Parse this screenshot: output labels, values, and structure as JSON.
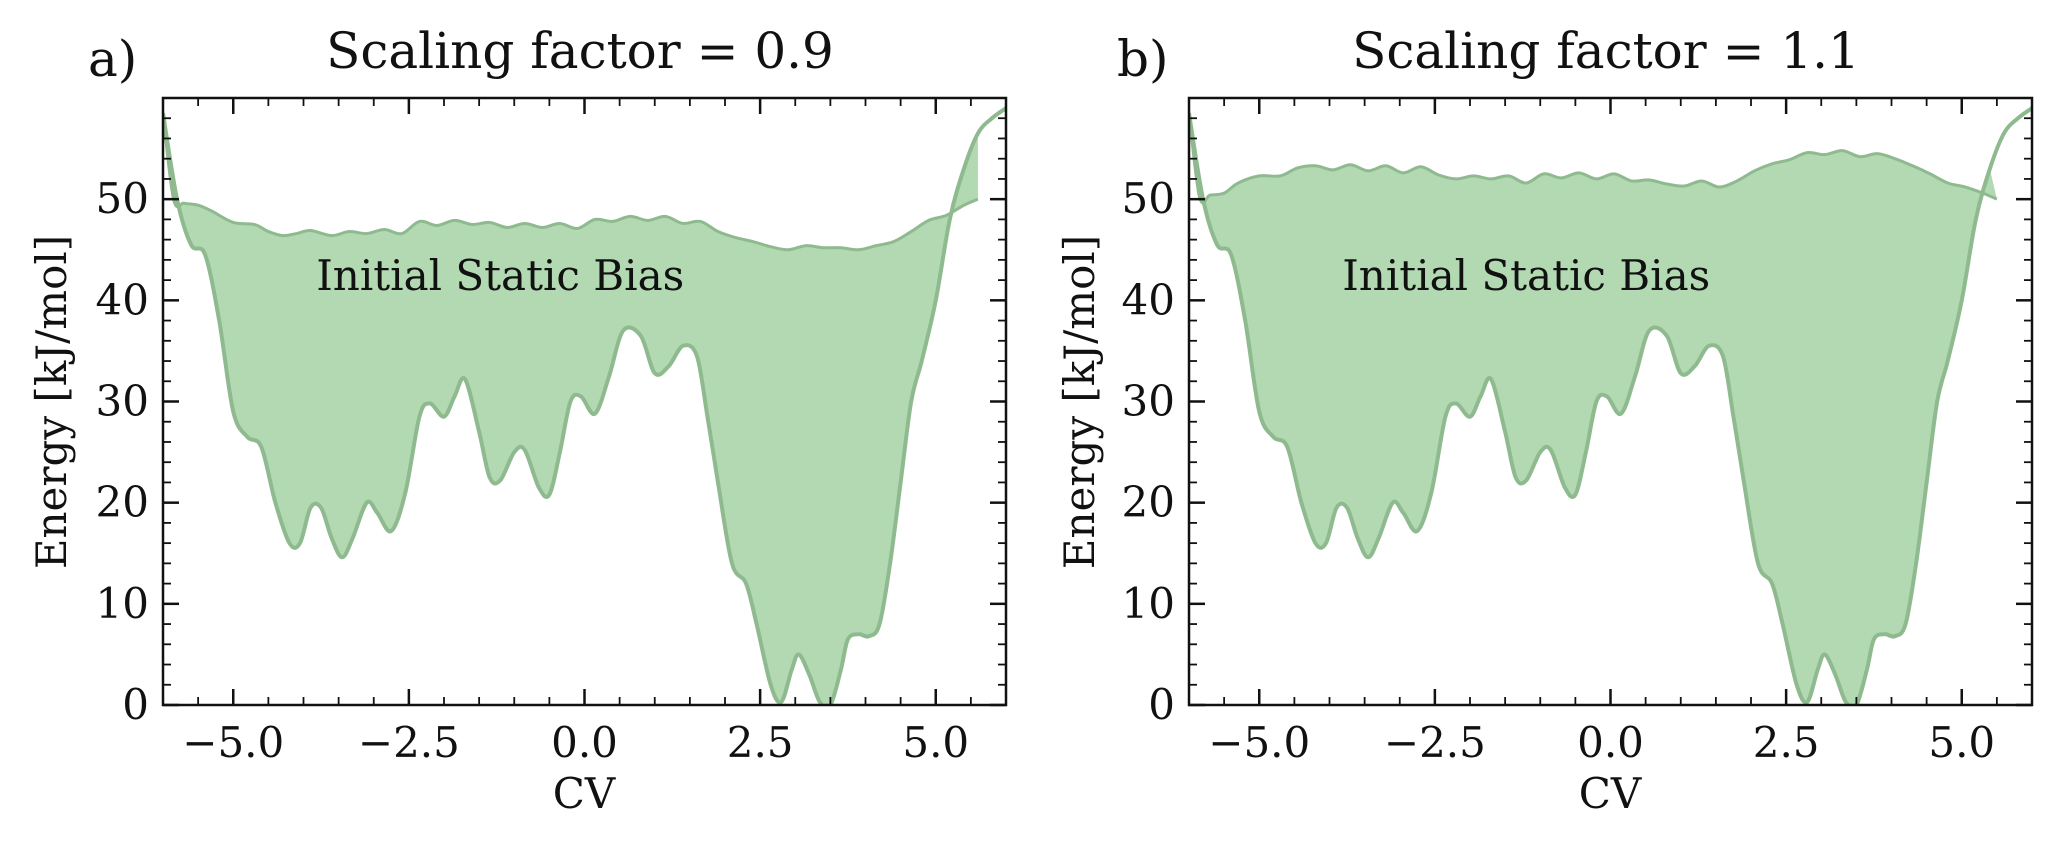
{
  "panels": [
    {
      "label": "a)",
      "title": "Scaling factor = 0.9",
      "annotation": "Initial Static Bias"
    },
    {
      "label": "b)",
      "title": "Scaling factor = 1.1",
      "annotation": "Initial Static Bias"
    }
  ],
  "colors": {
    "fill": "#b2d9b2",
    "line": "#8fba8f",
    "annotation": "#138a13",
    "axis": "#111111"
  },
  "chart_data": [
    {
      "type": "area",
      "title": "Scaling factor = 0.9",
      "xlabel": "CV",
      "ylabel": "Energy [kJ/mol]",
      "xlim": [
        -6,
        6
      ],
      "ylim": [
        0,
        60
      ],
      "xticks": [
        -5.0,
        -2.5,
        0.0,
        2.5,
        5.0
      ],
      "xtick_labels": [
        "−5.0",
        "−2.5",
        "0.0",
        "2.5",
        "5.0"
      ],
      "yticks": [
        0,
        10,
        20,
        30,
        40,
        50
      ],
      "ytick_labels": [
        "0",
        "10",
        "20",
        "30",
        "40",
        "50"
      ],
      "grid": false,
      "lower_curve": {
        "x": [
          -6.0,
          -5.8,
          -5.6,
          -5.4,
          -5.2,
          -5.0,
          -4.8,
          -4.6,
          -4.4,
          -4.2,
          -4.05,
          -3.9,
          -3.75,
          -3.6,
          -3.45,
          -3.3,
          -3.1,
          -2.95,
          -2.75,
          -2.55,
          -2.35,
          -2.2,
          -2.0,
          -1.85,
          -1.7,
          -1.5,
          -1.35,
          -1.2,
          -1.0,
          -0.85,
          -0.65,
          -0.5,
          -0.35,
          -0.2,
          -0.05,
          0.15,
          0.35,
          0.55,
          0.8,
          1.0,
          1.2,
          1.4,
          1.6,
          1.75,
          1.9,
          2.1,
          2.3,
          2.45,
          2.65,
          2.8,
          2.95,
          3.05,
          3.2,
          3.35,
          3.5,
          3.65,
          3.75,
          3.9,
          4.05,
          4.2,
          4.35,
          4.5,
          4.65,
          4.8,
          5.0,
          5.2,
          5.4,
          5.6,
          5.8,
          6.0
        ],
        "y": [
          58.5,
          50.0,
          45.5,
          44.5,
          38.0,
          29.0,
          26.5,
          25.5,
          20.0,
          16.0,
          16.0,
          19.5,
          19.5,
          16.5,
          14.6,
          16.5,
          20.0,
          19.0,
          17.2,
          21.0,
          28.5,
          29.8,
          28.5,
          30.5,
          32.2,
          27.0,
          22.5,
          22.2,
          25.0,
          25.2,
          21.5,
          20.8,
          25.0,
          30.0,
          30.5,
          28.8,
          32.5,
          37.0,
          36.5,
          32.8,
          33.5,
          35.5,
          34.5,
          28.5,
          22.0,
          14.0,
          12.0,
          8.0,
          2.0,
          0.3,
          3.5,
          5.0,
          3.0,
          0.3,
          0.0,
          3.5,
          6.5,
          7.0,
          6.8,
          8.0,
          14.0,
          22.0,
          30.0,
          34.0,
          40.0,
          48.0,
          53.0,
          56.5,
          58.0,
          59.0
        ]
      },
      "upper_curve": {
        "x": [
          -6.0,
          -5.85,
          -5.7,
          -5.5,
          -5.3,
          -5.0,
          -4.7,
          -4.5,
          -4.3,
          -4.1,
          -3.9,
          -3.6,
          -3.35,
          -3.1,
          -2.85,
          -2.6,
          -2.35,
          -2.1,
          -1.85,
          -1.6,
          -1.35,
          -1.1,
          -0.85,
          -0.6,
          -0.35,
          -0.1,
          0.15,
          0.4,
          0.65,
          0.9,
          1.15,
          1.4,
          1.65,
          1.9,
          2.15,
          2.4,
          2.65,
          2.9,
          3.15,
          3.4,
          3.65,
          3.9,
          4.15,
          4.4,
          4.65,
          4.9,
          5.15,
          5.4,
          5.6
        ],
        "y": [
          58.5,
          50.0,
          49.6,
          49.4,
          48.8,
          47.7,
          47.5,
          46.8,
          46.4,
          46.6,
          46.9,
          46.4,
          46.8,
          46.6,
          47.0,
          46.6,
          47.8,
          47.4,
          47.9,
          47.5,
          47.7,
          47.2,
          47.6,
          47.2,
          47.6,
          47.1,
          48.0,
          47.8,
          48.3,
          47.9,
          48.3,
          47.6,
          47.8,
          46.8,
          46.2,
          45.8,
          45.3,
          45.0,
          45.4,
          45.2,
          45.2,
          45.0,
          45.4,
          45.8,
          46.8,
          47.9,
          48.4,
          49.4,
          50.0
        ]
      },
      "annotation": {
        "text": "Initial Static Bias",
        "x": -1.2,
        "y": 41
      }
    },
    {
      "type": "area",
      "title": "Scaling factor = 1.1",
      "xlabel": "CV",
      "ylabel": "Energy [kJ/mol]",
      "xlim": [
        -6,
        6
      ],
      "ylim": [
        0,
        60
      ],
      "xticks": [
        -5.0,
        -2.5,
        0.0,
        2.5,
        5.0
      ],
      "xtick_labels": [
        "−5.0",
        "−2.5",
        "0.0",
        "2.5",
        "5.0"
      ],
      "yticks": [
        0,
        10,
        20,
        30,
        40,
        50
      ],
      "ytick_labels": [
        "0",
        "10",
        "20",
        "30",
        "40",
        "50"
      ],
      "grid": false,
      "lower_curve": {
        "x": [
          -6.0,
          -5.8,
          -5.6,
          -5.4,
          -5.2,
          -5.0,
          -4.8,
          -4.6,
          -4.4,
          -4.2,
          -4.05,
          -3.9,
          -3.75,
          -3.6,
          -3.45,
          -3.3,
          -3.1,
          -2.95,
          -2.75,
          -2.55,
          -2.35,
          -2.2,
          -2.0,
          -1.85,
          -1.7,
          -1.5,
          -1.35,
          -1.2,
          -1.0,
          -0.85,
          -0.65,
          -0.5,
          -0.35,
          -0.2,
          -0.05,
          0.15,
          0.35,
          0.55,
          0.8,
          1.0,
          1.2,
          1.4,
          1.6,
          1.75,
          1.9,
          2.1,
          2.3,
          2.45,
          2.65,
          2.8,
          2.95,
          3.05,
          3.2,
          3.35,
          3.5,
          3.65,
          3.75,
          3.9,
          4.05,
          4.2,
          4.35,
          4.5,
          4.65,
          4.8,
          5.0,
          5.2,
          5.4,
          5.6,
          5.8,
          6.0
        ],
        "y": [
          58.5,
          50.0,
          45.5,
          44.5,
          38.0,
          29.0,
          26.5,
          25.5,
          20.0,
          16.0,
          16.0,
          19.5,
          19.5,
          16.5,
          14.6,
          16.5,
          20.0,
          19.0,
          17.2,
          21.0,
          28.5,
          29.8,
          28.5,
          30.5,
          32.2,
          27.0,
          22.5,
          22.2,
          25.0,
          25.2,
          21.5,
          20.8,
          25.0,
          30.0,
          30.5,
          28.8,
          32.5,
          37.0,
          36.5,
          32.8,
          33.5,
          35.5,
          34.5,
          28.5,
          22.0,
          14.0,
          12.0,
          8.0,
          2.0,
          0.3,
          3.5,
          5.0,
          3.0,
          0.3,
          0.0,
          3.5,
          6.5,
          7.0,
          6.8,
          8.0,
          14.0,
          22.0,
          30.0,
          34.0,
          40.0,
          48.0,
          53.0,
          56.5,
          58.0,
          59.0
        ]
      },
      "upper_curve": {
        "x": [
          -6.0,
          -5.85,
          -5.7,
          -5.5,
          -5.3,
          -5.0,
          -4.7,
          -4.45,
          -4.2,
          -3.95,
          -3.7,
          -3.45,
          -3.2,
          -2.95,
          -2.7,
          -2.45,
          -2.2,
          -1.95,
          -1.7,
          -1.45,
          -1.2,
          -0.95,
          -0.7,
          -0.45,
          -0.2,
          0.05,
          0.3,
          0.55,
          0.8,
          1.05,
          1.3,
          1.55,
          1.8,
          2.05,
          2.3,
          2.55,
          2.8,
          3.05,
          3.3,
          3.55,
          3.8,
          4.05,
          4.3,
          4.55,
          4.8,
          5.05,
          5.3,
          5.5
        ],
        "y": [
          58.5,
          50.2,
          50.4,
          50.6,
          51.6,
          52.3,
          52.3,
          53.1,
          53.3,
          52.9,
          53.4,
          52.8,
          53.3,
          52.6,
          53.2,
          52.4,
          52.0,
          52.3,
          52.0,
          52.3,
          51.6,
          52.5,
          52.1,
          52.6,
          52.0,
          52.5,
          51.8,
          51.9,
          51.5,
          51.3,
          51.8,
          51.2,
          51.8,
          52.8,
          53.5,
          53.9,
          54.6,
          54.4,
          54.8,
          54.2,
          54.5,
          54.0,
          53.3,
          52.5,
          51.6,
          51.2,
          50.6,
          50.0
        ]
      },
      "annotation": {
        "text": "Initial Static Bias",
        "x": -1.2,
        "y": 41
      }
    }
  ]
}
